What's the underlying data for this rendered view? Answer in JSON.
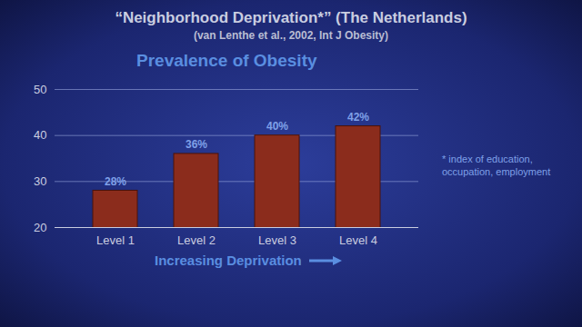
{
  "chart_data": {
    "type": "bar",
    "title": "“Neighborhood Deprivation*” (The Netherlands)",
    "subtitle": "(van Lenthe et al., 2002, Int J Obesity)",
    "chart_title": "Prevalence of Obesity",
    "x_label": "Increasing Deprivation",
    "annotation": "* index of education, occupation, employment",
    "categories": [
      "Level 1",
      "Level 2",
      "Level 3",
      "Level 4"
    ],
    "values": [
      28,
      36,
      40,
      42
    ],
    "value_labels": [
      "28%",
      "36%",
      "40%",
      "42%"
    ],
    "data_labels": true,
    "color": "#8b2c1c",
    "ylim": [
      20,
      50
    ],
    "yticks": [
      20,
      30,
      40,
      50
    ],
    "grid": true
  }
}
